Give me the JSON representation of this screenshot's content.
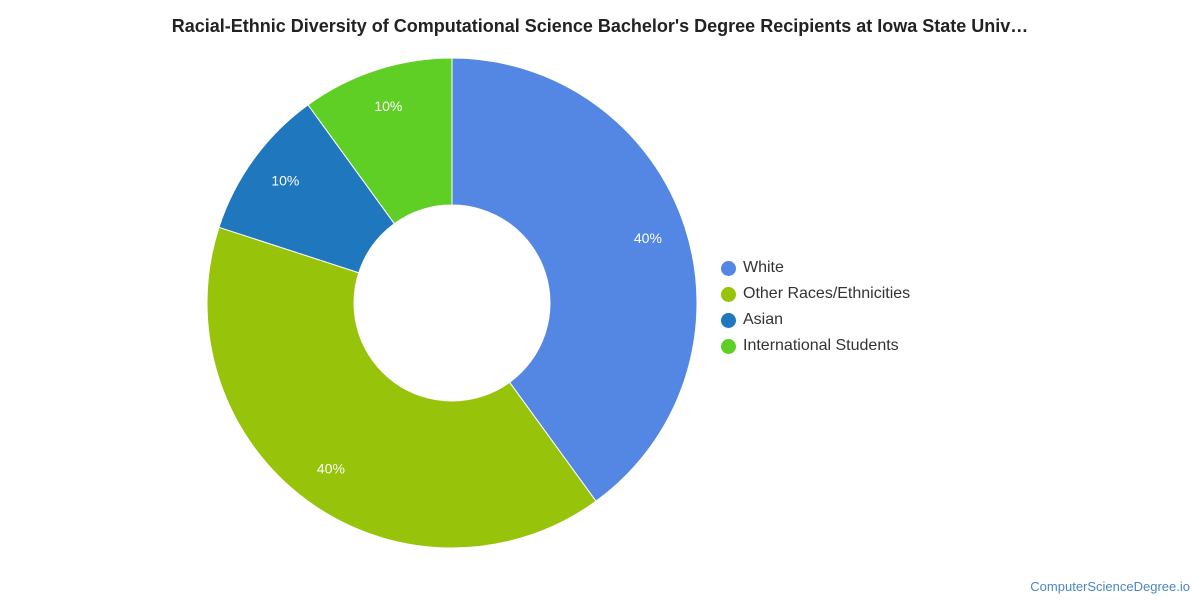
{
  "title": "Racial-Ethnic Diversity of Computational Science Bachelor's Degree Recipients at Iowa State Univ…",
  "source": "ComputerScienceDegree.io",
  "chart_data": {
    "type": "pie",
    "donut": true,
    "title": "Racial-Ethnic Diversity of Computational Science Bachelor's Degree Recipients at Iowa State Univ…",
    "legend_position": "right",
    "series": [
      {
        "name": "White",
        "value": 40,
        "label": "40%",
        "color": "#5486e3"
      },
      {
        "name": "Other Races/Ethnicities",
        "value": 40,
        "label": "40%",
        "color": "#97c30a"
      },
      {
        "name": "Asian",
        "value": 10,
        "label": "10%",
        "color": "#1f77bd"
      },
      {
        "name": "International Students",
        "value": 10,
        "label": "10%",
        "color": "#5fcf25"
      }
    ]
  }
}
